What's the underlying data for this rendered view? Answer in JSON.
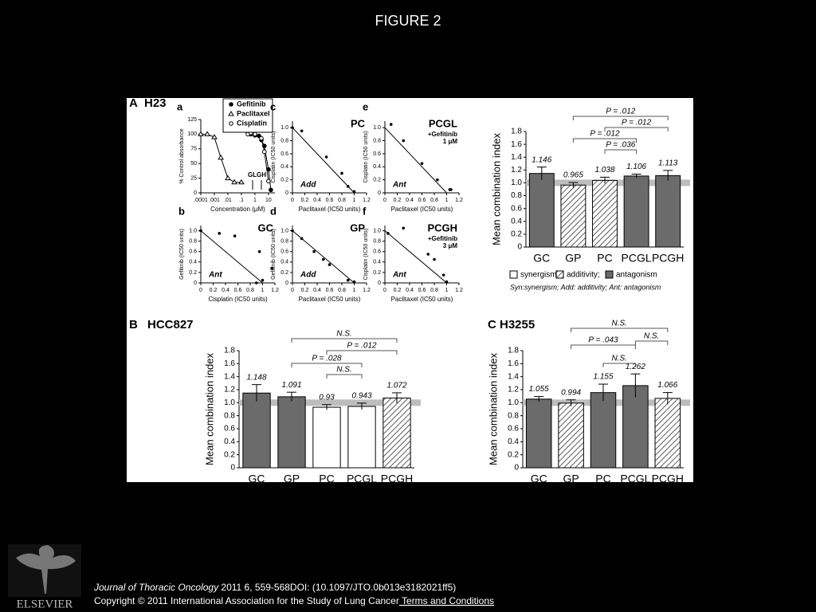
{
  "header": {
    "title": "FIGURE 2"
  },
  "figure": {
    "sections": [
      {
        "letter": "A",
        "cell_line": "H23"
      },
      {
        "letter": "B",
        "cell_line": "HCC827"
      },
      {
        "letter": "C",
        "cell_line": "H3255"
      }
    ],
    "dose_response": {
      "type": "line",
      "letter": "a",
      "xlabel": "Concentration (μM)",
      "ylabel": "% Control absorbance",
      "xscale": "log",
      "xlim": [
        0.0001,
        30
      ],
      "ylim": [
        0,
        125
      ],
      "xticks": [
        {
          "value": 0.0001,
          "label": ".0001"
        },
        {
          "value": 0.001,
          "label": ".001"
        },
        {
          "value": 0.01,
          "label": ".01"
        },
        {
          "value": 0.1,
          "label": ".1"
        },
        1,
        10
      ],
      "yticks": [
        0,
        25,
        50,
        75,
        100,
        125
      ],
      "series": [
        {
          "name": "Gefitinib",
          "marker": "filled-circle",
          "x": [
            0.3,
            0.5,
            1,
            2,
            3,
            5,
            10,
            15
          ],
          "y": [
            103,
            100,
            98,
            97,
            90,
            80,
            40,
            5
          ]
        },
        {
          "name": "Paclitaxel",
          "marker": "triangle",
          "x": [
            0.0001,
            0.0003,
            0.001,
            0.003,
            0.01,
            0.03,
            0.1
          ],
          "y": [
            100,
            100,
            95,
            60,
            25,
            18,
            18
          ]
        },
        {
          "name": "Cisplatin",
          "marker": "open-circle",
          "x": [
            0.3,
            0.5,
            1,
            3,
            5,
            10
          ],
          "y": [
            100,
            102,
            100,
            93,
            70,
            20
          ]
        }
      ],
      "annotations": [
        "GL",
        "GH"
      ]
    },
    "isobolograms": [
      {
        "type": "scatter",
        "letter": "c",
        "title": "PC",
        "notes": [],
        "tag": "Add",
        "xlabel": "Paclitaxel (IC50 units)",
        "ylabel": "Cisplatin (IC50 units)",
        "xlim": [
          0,
          1.2
        ],
        "ylim": [
          0,
          1.1
        ],
        "xticks": [
          0,
          0.2,
          0.4,
          0.6,
          0.8,
          1,
          1.2
        ],
        "yticks": [
          0,
          0.2,
          0.4,
          0.6,
          0.8,
          {
            "value": 1,
            "label": "1.0"
          }
        ],
        "line": {
          "x": [
            0,
            1
          ],
          "y": [
            1,
            0
          ]
        },
        "points": {
          "x": [
            0,
            0.15,
            0.55,
            0.8,
            0.9,
            1.0
          ],
          "y": [
            1.0,
            0.95,
            0.55,
            0.3,
            0.1,
            0.02
          ]
        }
      },
      {
        "type": "scatter",
        "letter": "e",
        "title": "PCGL",
        "notes": [
          "+Gefitinib",
          "1 μM"
        ],
        "tag": "Ant",
        "xlabel": "Paclitaxel (IC50 units)",
        "ylabel": "Cisplatin (IC50 units)",
        "xlim": [
          0,
          1.2
        ],
        "ylim": [
          0,
          1.1
        ],
        "xticks": [
          0,
          0.2,
          0.4,
          0.6,
          0.8,
          1,
          1.2
        ],
        "yticks": [
          0,
          0.2,
          0.4,
          0.6,
          0.8,
          {
            "value": 1,
            "label": "1.0"
          }
        ],
        "line": {
          "x": [
            0,
            1
          ],
          "y": [
            1,
            0
          ]
        },
        "points": {
          "x": [
            0.1,
            0.3,
            0.6,
            0.85,
            1.05,
            1.07
          ],
          "y": [
            1.05,
            0.8,
            0.45,
            0.2,
            0.05,
            0.05
          ]
        }
      },
      {
        "type": "scatter",
        "letter": "b",
        "title": "GC",
        "notes": [],
        "tag": "Ant",
        "xlabel": "Cisplatin (IC50 units)",
        "ylabel": "Gefitinib (IC50 units)",
        "xlim": [
          0,
          1.2
        ],
        "ylim": [
          0,
          1.1
        ],
        "xticks": [
          0,
          0.2,
          0.4,
          0.6,
          0.8,
          1,
          1.2
        ],
        "yticks": [
          0,
          0.2,
          0.4,
          0.6,
          0.8,
          {
            "value": 1,
            "label": "1.0"
          }
        ],
        "line": {
          "x": [
            0,
            1
          ],
          "y": [
            1,
            0
          ]
        },
        "points": {
          "x": [
            0,
            0.3,
            0.55,
            0.95,
            0.9,
            1.0,
            1.15
          ],
          "y": [
            1.0,
            0.95,
            0.9,
            0.6,
            0.0,
            0.05,
            0.28
          ]
        }
      },
      {
        "type": "scatter",
        "letter": "d",
        "title": "GP",
        "notes": [],
        "tag": "Add",
        "xlabel": "Paclitaxel (IC50 units)",
        "ylabel": "Gefitinib (IC50 units)",
        "xlim": [
          0,
          1.2
        ],
        "ylim": [
          0,
          1.1
        ],
        "xticks": [
          0,
          0.2,
          0.4,
          0.6,
          0.8,
          1,
          1.2
        ],
        "yticks": [
          0,
          0.2,
          0.4,
          0.6,
          0.8,
          {
            "value": 1,
            "label": "1.0"
          }
        ],
        "line": {
          "x": [
            0,
            1
          ],
          "y": [
            1,
            0
          ]
        },
        "points": {
          "x": [
            0,
            0.15,
            0.35,
            0.5,
            0.6,
            0.9,
            1.0
          ],
          "y": [
            1.0,
            0.85,
            0.6,
            0.45,
            0.35,
            0.05,
            0.02
          ]
        }
      },
      {
        "type": "scatter",
        "letter": "f",
        "title": "PCGH",
        "notes": [
          "+Gefitinib",
          "3 μM"
        ],
        "tag": "Ant",
        "xlabel": "Paclitaxel (IC50 units)",
        "ylabel": "Cisplatin (IC50 units)",
        "xlim": [
          0,
          1.2
        ],
        "ylim": [
          0,
          1.1
        ],
        "xticks": [
          0,
          0.2,
          0.4,
          0.6,
          0.8,
          1,
          1.2
        ],
        "yticks": [
          0,
          0.2,
          0.4,
          0.6,
          0.8,
          {
            "value": 1,
            "label": "1.0"
          }
        ],
        "line": {
          "x": [
            0,
            1
          ],
          "y": [
            1,
            0
          ]
        },
        "points": {
          "x": [
            0.05,
            0.3,
            0.7,
            0.8,
            0.95,
            1.0
          ],
          "y": [
            0.95,
            1.05,
            0.55,
            0.45,
            0.15,
            0.02
          ]
        }
      }
    ],
    "bar_charts": [
      {
        "type": "bar",
        "ylabel": "Mean combination index",
        "categories": [
          "GC",
          "GP",
          "PC",
          "PCGL",
          "PCGH"
        ],
        "values": [
          1.146,
          0.965,
          1.038,
          1.106,
          1.113
        ],
        "errors": [
          0.1,
          0.04,
          0.05,
          0.03,
          0.08
        ],
        "fills": [
          "dark",
          "hatch",
          "hatch",
          "dark",
          "dark"
        ],
        "ylim": [
          0,
          1.8
        ],
        "yticks": [
          0,
          0.2,
          0.4,
          0.6,
          0.8,
          {
            "value": 1,
            "label": "1.0"
          },
          1.2,
          1.4,
          1.6,
          1.8
        ],
        "reference": 1,
        "annotations": [
          "P = .012",
          "P = .012",
          "P = .012",
          "P = .036"
        ]
      },
      {
        "type": "bar",
        "ylabel": "Mean combination index",
        "categories": [
          "GC",
          "GP",
          "PC",
          "PCGL",
          "PCGH"
        ],
        "values": [
          1.148,
          1.091,
          0.93,
          0.943,
          1.072
        ],
        "errors": [
          0.13,
          0.07,
          0.04,
          0.05,
          0.08
        ],
        "fills": [
          "dark",
          "dark",
          "white",
          "white",
          "hatch"
        ],
        "ylim": [
          0,
          1.8
        ],
        "yticks": [
          0,
          0.2,
          0.4,
          0.6,
          0.8,
          {
            "value": 1,
            "label": "1.0"
          },
          1.2,
          1.4,
          1.6,
          1.8
        ],
        "reference": 1,
        "annotations": [
          "N.S.",
          "P = .012",
          "P = .028",
          "N.S."
        ]
      },
      {
        "type": "bar",
        "ylabel": "Mean combination index",
        "categories": [
          "GC",
          "GP",
          "PC",
          "PCGL",
          "PCGH"
        ],
        "values": [
          1.055,
          0.994,
          1.155,
          1.262,
          1.066
        ],
        "errors": [
          0.04,
          0.05,
          0.13,
          0.18,
          0.09
        ],
        "fills": [
          "dark",
          "hatch",
          "dark",
          "dark",
          "hatch"
        ],
        "ylim": [
          0,
          1.8
        ],
        "yticks": [
          0,
          0.2,
          0.4,
          0.6,
          0.8,
          {
            "value": 1,
            "label": "1.0"
          },
          1.2,
          1.4,
          1.6,
          1.8
        ],
        "reference": 1,
        "annotations": [
          "N.S.",
          "N.S.",
          "P = .043",
          "N.S."
        ]
      }
    ],
    "legend": {
      "entries": [
        "synergism;",
        "additivity;",
        "antagonism"
      ],
      "note": "Syn:synergism; Add: additivity; Ant: antagonism"
    }
  },
  "footer": {
    "journal": "Journal of Thoracic Oncology",
    "citation": " 2011 6, 559-568DOI: (10.1097/JTO.0b013e3182021ff5)",
    "copyright": "Copyright © 2011 International Association for the Study of Lung Cancer",
    "link": " Terms and Conditions"
  },
  "logo": {
    "text": "ELSEVIER"
  }
}
